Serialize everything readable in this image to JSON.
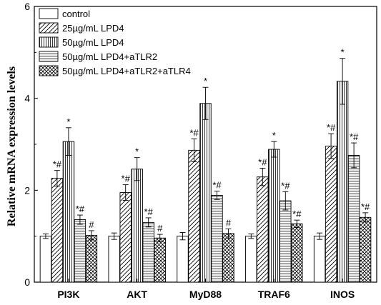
{
  "chart_data": {
    "type": "bar",
    "xlabel": "",
    "ylabel": "Relative mRNA expression levels",
    "ylim": [
      0,
      6
    ],
    "yticks": [
      0,
      2,
      4,
      6
    ],
    "categories": [
      "PI3K",
      "AKT",
      "MyD88",
      "TRAF6",
      "INOS"
    ],
    "legend_position": "top-left",
    "series": [
      {
        "name": "control",
        "pattern": "none",
        "values": [
          1.0,
          1.0,
          1.0,
          1.0,
          1.0
        ],
        "errors": [
          0.05,
          0.07,
          0.08,
          0.05,
          0.07
        ],
        "annotations": [
          "",
          "",
          "",
          "",
          ""
        ]
      },
      {
        "name": "25µg/mL LPD4",
        "pattern": "diagonal",
        "values": [
          2.26,
          1.95,
          2.87,
          2.29,
          2.96
        ],
        "errors": [
          0.17,
          0.17,
          0.25,
          0.19,
          0.27
        ],
        "annotations": [
          "*#",
          "*#",
          "*#",
          "*#",
          "*#"
        ]
      },
      {
        "name": "50µg/mL LPD4",
        "pattern": "vertical",
        "values": [
          3.06,
          2.46,
          3.89,
          2.89,
          4.37
        ],
        "errors": [
          0.3,
          0.25,
          0.35,
          0.17,
          0.5
        ],
        "annotations": [
          "*",
          "*",
          "*",
          "*",
          "*"
        ]
      },
      {
        "name": "50µg/mL LPD4+aTLR2",
        "pattern": "horizontal",
        "values": [
          1.36,
          1.3,
          1.89,
          1.77,
          2.76
        ],
        "errors": [
          0.1,
          0.1,
          0.09,
          0.2,
          0.27
        ],
        "annotations": [
          "*#",
          "*#",
          "*#",
          "*#",
          "*#"
        ]
      },
      {
        "name": "50µg/mL LPD4+aTLR2+aTLR4",
        "pattern": "crosshatch",
        "values": [
          1.02,
          0.96,
          1.06,
          1.27,
          1.41
        ],
        "errors": [
          0.1,
          0.08,
          0.1,
          0.08,
          0.1
        ],
        "annotations": [
          "#",
          "#",
          "#",
          "*#",
          "*#"
        ]
      }
    ]
  }
}
